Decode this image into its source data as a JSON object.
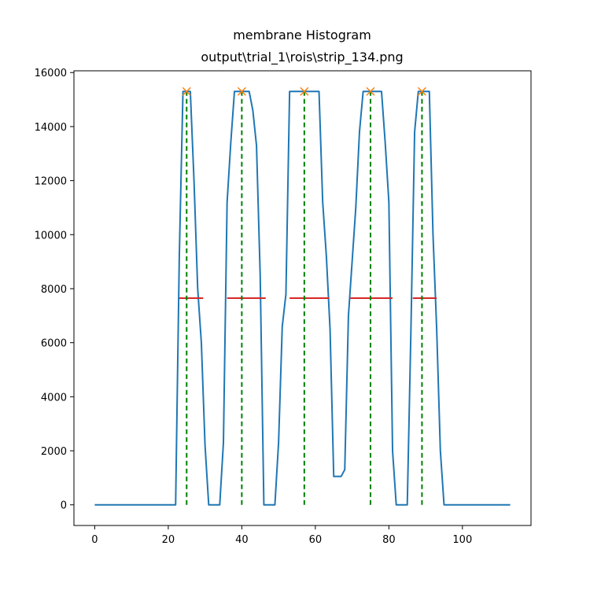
{
  "chart_data": {
    "type": "line",
    "title_lines": [
      "membrane Histogram",
      "output\\trial_1\\rois\\strip_134.png"
    ],
    "xlabel": "",
    "ylabel": "",
    "xlim": [
      -5.65,
      118.65
    ],
    "ylim": [
      -765,
      16065
    ],
    "xticks": [
      0,
      20,
      40,
      60,
      80,
      100
    ],
    "yticks": [
      0,
      2000,
      4000,
      6000,
      8000,
      10000,
      12000,
      14000,
      16000
    ],
    "grid": false,
    "colors": {
      "profile": "#1f77b4",
      "peaks": "#ff7f0e",
      "half_width": "#d62728",
      "peak_lines": "#008000"
    },
    "series": [
      {
        "kind": "profile",
        "points": [
          [
            0,
            0
          ],
          [
            22,
            0
          ],
          [
            23,
            9200
          ],
          [
            24,
            15300
          ],
          [
            26,
            15300
          ],
          [
            27,
            12000
          ],
          [
            28,
            8000
          ],
          [
            29,
            6000
          ],
          [
            30,
            2200
          ],
          [
            31,
            0
          ],
          [
            34,
            0
          ],
          [
            35,
            2300
          ],
          [
            36,
            11200
          ],
          [
            37,
            13400
          ],
          [
            38,
            15300
          ],
          [
            42,
            15300
          ],
          [
            43,
            14600
          ],
          [
            44,
            13300
          ],
          [
            45,
            8500
          ],
          [
            46,
            0
          ],
          [
            49,
            0
          ],
          [
            50,
            2300
          ],
          [
            51,
            6600
          ],
          [
            52,
            7800
          ],
          [
            53,
            15300
          ],
          [
            61,
            15300
          ],
          [
            62,
            11200
          ],
          [
            63,
            9200
          ],
          [
            64,
            6500
          ],
          [
            65,
            1050
          ],
          [
            67,
            1050
          ],
          [
            68,
            1300
          ],
          [
            69,
            7000
          ],
          [
            70,
            9000
          ],
          [
            71,
            11000
          ],
          [
            72,
            13800
          ],
          [
            73,
            15300
          ],
          [
            78,
            15300
          ],
          [
            79,
            13400
          ],
          [
            80,
            11200
          ],
          [
            81,
            2000
          ],
          [
            82,
            0
          ],
          [
            85,
            0
          ],
          [
            86,
            6500
          ],
          [
            87,
            13800
          ],
          [
            88,
            15300
          ],
          [
            91,
            15300
          ],
          [
            92,
            10000
          ],
          [
            93,
            6500
          ],
          [
            94,
            2000
          ],
          [
            95,
            0
          ],
          [
            113,
            0
          ]
        ]
      },
      {
        "kind": "peaks",
        "x": [
          25,
          40,
          57,
          75,
          89
        ],
        "y": [
          15300,
          15300,
          15300,
          15300,
          15300
        ]
      },
      {
        "kind": "half_width",
        "y": 7650,
        "segments": [
          [
            23,
            29.5
          ],
          [
            36,
            46.5
          ],
          [
            53,
            63.8
          ],
          [
            69.5,
            81
          ],
          [
            86.5,
            93
          ]
        ]
      },
      {
        "kind": "peak_lines",
        "x": [
          25,
          40,
          57,
          75,
          89
        ],
        "ymin": 0,
        "ymax": 15300
      }
    ]
  }
}
